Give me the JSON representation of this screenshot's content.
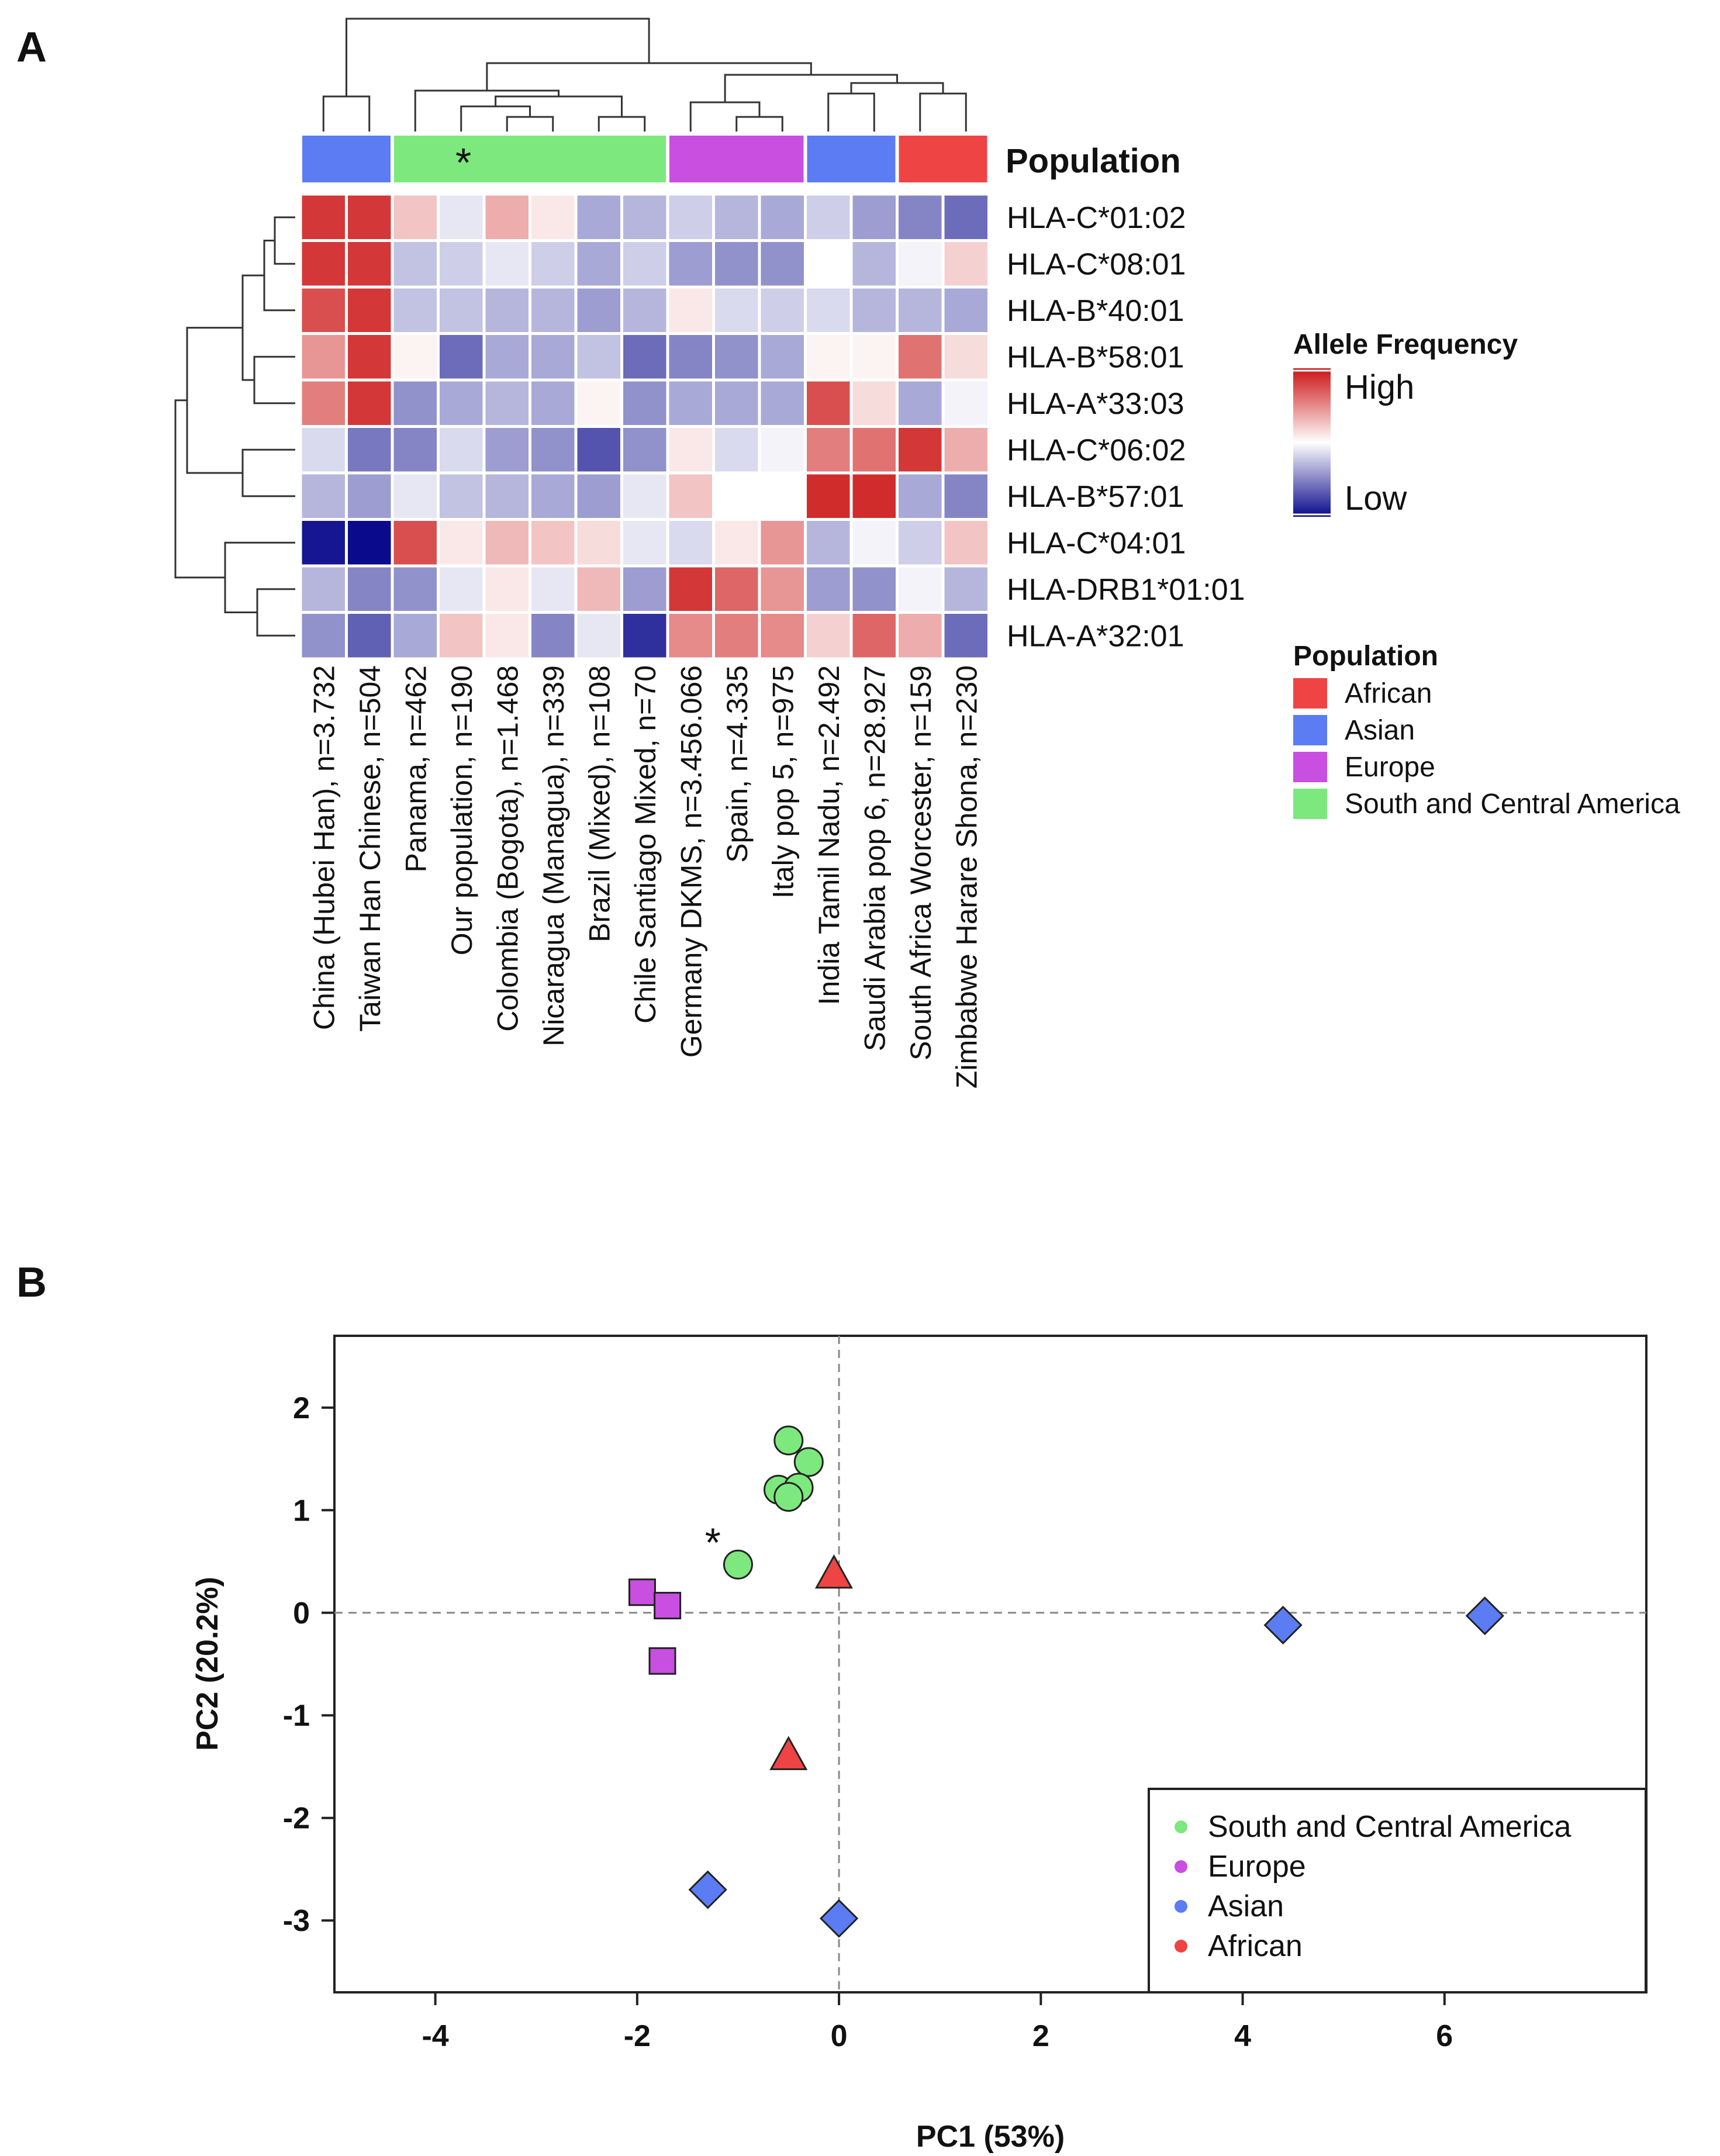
{
  "panel_a_label": "A",
  "panel_b_label": "B",
  "colors": {
    "African": "#ef4444",
    "Asian": "#5b7cf2",
    "Europe": "#c84fe0",
    "South and Central America": "#7de87d"
  },
  "chart_data": [
    {
      "type": "heatmap",
      "title": "",
      "annotation_title": "Population",
      "row_labels": [
        "HLA-C*01:02",
        "HLA-C*08:01",
        "HLA-B*40:01",
        "HLA-B*58:01",
        "HLA-A*33:03",
        "HLA-C*06:02",
        "HLA-B*57:01",
        "HLA-C*04:01",
        "HLA-DRB1*01:01",
        "HLA-A*32:01"
      ],
      "col_labels": [
        "China (Hubei Han), n=3.732",
        "Taiwan Han Chinese, n=504",
        "Panama, n=462",
        "Our population, n=190",
        "Colombia (Bogota), n=1.468",
        "Nicaragua (Managua), n=339",
        "Brazil (Mixed), n=108",
        "Chile Santiago Mixed, n=70",
        "Germany DKMS, n=3.456.066",
        "Spain, n=4.335",
        "Italy pop 5, n=975",
        "India Tamil Nadu, n=2.492",
        "Saudi Arabia pop 6, n=28.927",
        "South Africa Worcester, n=159",
        "Zimbabwe Harare Shona, n=230"
      ],
      "col_groups": [
        {
          "population": "Asian",
          "start": 0,
          "end": 1,
          "marker": ""
        },
        {
          "population": "South and Central America",
          "start": 2,
          "end": 7,
          "marker": "*"
        },
        {
          "population": "Europe",
          "start": 8,
          "end": 10,
          "marker": ""
        },
        {
          "population": "Asian",
          "start": 11,
          "end": 12,
          "marker": ""
        },
        {
          "population": "African",
          "start": 13,
          "end": 14,
          "marker": ""
        }
      ],
      "value_scale": "-1 = low (blue), 0 = mid (white), 1 = high (red)",
      "values": [
        [
          0.85,
          0.85,
          0.25,
          -0.1,
          0.35,
          0.1,
          -0.35,
          -0.3,
          -0.2,
          -0.3,
          -0.35,
          -0.2,
          -0.4,
          -0.5,
          -0.6
        ],
        [
          0.85,
          0.85,
          -0.25,
          -0.2,
          -0.1,
          -0.2,
          -0.35,
          -0.2,
          -0.4,
          -0.45,
          -0.45,
          0.0,
          -0.3,
          -0.05,
          0.2
        ],
        [
          0.75,
          0.85,
          -0.25,
          -0.25,
          -0.3,
          -0.3,
          -0.4,
          -0.3,
          0.1,
          -0.15,
          -0.2,
          -0.15,
          -0.3,
          -0.3,
          -0.35
        ],
        [
          0.45,
          0.85,
          0.05,
          -0.6,
          -0.35,
          -0.35,
          -0.25,
          -0.6,
          -0.5,
          -0.45,
          -0.35,
          0.05,
          0.05,
          0.6,
          0.15
        ],
        [
          0.55,
          0.85,
          -0.45,
          -0.35,
          -0.3,
          -0.35,
          0.05,
          -0.45,
          -0.35,
          -0.35,
          -0.35,
          0.75,
          0.15,
          -0.35,
          -0.05
        ],
        [
          -0.15,
          -0.55,
          -0.5,
          -0.15,
          -0.4,
          -0.45,
          -0.7,
          -0.45,
          0.1,
          -0.15,
          -0.05,
          0.55,
          0.6,
          0.85,
          0.35
        ],
        [
          -0.3,
          -0.4,
          -0.1,
          -0.25,
          -0.3,
          -0.35,
          -0.4,
          -0.1,
          0.25,
          0.0,
          0.0,
          0.9,
          0.9,
          -0.35,
          -0.5
        ],
        [
          -0.95,
          -1.0,
          0.75,
          0.1,
          0.3,
          0.25,
          0.15,
          -0.1,
          -0.15,
          0.1,
          0.45,
          -0.3,
          -0.05,
          -0.2,
          0.25
        ],
        [
          -0.3,
          -0.5,
          -0.45,
          -0.1,
          0.1,
          -0.1,
          0.3,
          -0.4,
          0.85,
          0.65,
          0.45,
          -0.4,
          -0.45,
          -0.05,
          -0.3
        ],
        [
          -0.45,
          -0.65,
          -0.35,
          0.25,
          0.1,
          -0.5,
          -0.1,
          -0.85,
          0.5,
          0.55,
          0.5,
          0.2,
          0.65,
          0.35,
          -0.6
        ]
      ],
      "legend": {
        "title": "Allele Frequency",
        "high_label": "High",
        "low_label": "Low"
      },
      "population_legend": {
        "title": "Population",
        "entries": [
          "African",
          "Asian",
          "Europe",
          "South and Central America"
        ]
      }
    },
    {
      "type": "scatter",
      "title": "",
      "xlabel": "PC1 (53%)",
      "ylabel": "PC2 (20.2%)",
      "xlim": [
        -5,
        8
      ],
      "ylim": [
        -3.7,
        2.7
      ],
      "xticks": [
        -4,
        -2,
        0,
        2,
        4,
        6
      ],
      "yticks": [
        2,
        1,
        0,
        -1,
        -2,
        -3
      ],
      "reference_lines": {
        "x": 0,
        "y": 0,
        "style": "dashed"
      },
      "annotation": {
        "text": "*",
        "x": -1.25,
        "y": 0.72
      },
      "series": [
        {
          "name": "South and Central America",
          "marker": "circle",
          "points": [
            [
              -0.5,
              1.68
            ],
            [
              -0.3,
              1.47
            ],
            [
              -0.6,
              1.2
            ],
            [
              -0.4,
              1.22
            ],
            [
              -0.5,
              1.13
            ],
            [
              -1.0,
              0.47
            ]
          ]
        },
        {
          "name": "Europe",
          "marker": "square",
          "points": [
            [
              -1.95,
              0.2
            ],
            [
              -1.7,
              0.07
            ],
            [
              -1.75,
              -0.47
            ]
          ]
        },
        {
          "name": "Asian",
          "marker": "diamond",
          "points": [
            [
              4.4,
              -0.12
            ],
            [
              6.4,
              -0.03
            ],
            [
              -1.3,
              -2.7
            ],
            [
              0.0,
              -2.98
            ]
          ]
        },
        {
          "name": "African",
          "marker": "triangle",
          "points": [
            [
              -0.05,
              0.37
            ],
            [
              -0.5,
              -1.4
            ]
          ]
        }
      ],
      "legend": {
        "placement": "bottom-right",
        "entries": [
          "South and Central America",
          "Europe",
          "Asian",
          "African"
        ]
      }
    }
  ]
}
